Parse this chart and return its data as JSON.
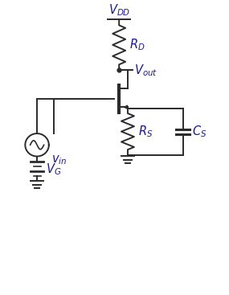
{
  "bg_color": "#ffffff",
  "line_color": "#2b2b2b",
  "text_color": "#1a1a8c",
  "figsize": [
    2.85,
    3.67
  ],
  "dpi": 100,
  "VDD_label": "$V_{DD}$",
  "RD_label": "$R_D$",
  "Vout_label": "$V_{out}$",
  "RS_label": "$R_S$",
  "CS_label": "$C_S$",
  "vin_label": "$v_{in}$",
  "VG_label": "$V_G$",
  "xlim": [
    0,
    10
  ],
  "ylim": [
    0,
    13
  ]
}
